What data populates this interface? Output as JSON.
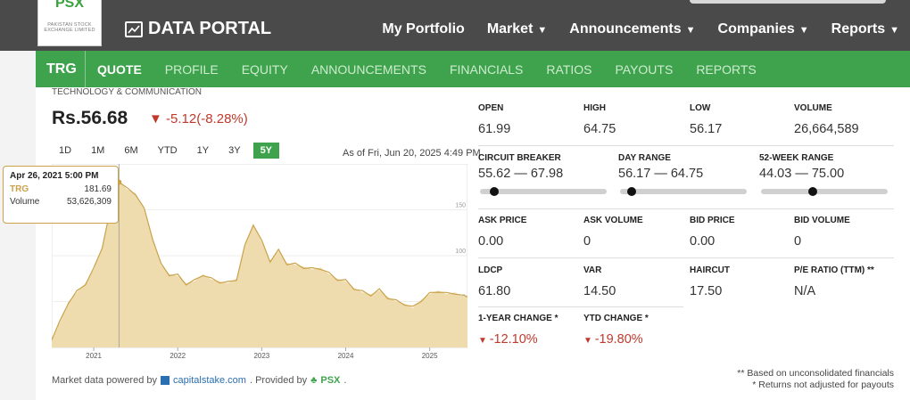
{
  "header": {
    "logo_text": "PSX",
    "logo_sub": "PAKISTAN STOCK EXCHANGE LIMITED",
    "portal_title": "DATA PORTAL",
    "nav": [
      {
        "label": "My Portfolio",
        "caret": false
      },
      {
        "label": "Market",
        "caret": true
      },
      {
        "label": "Announcements",
        "caret": true
      },
      {
        "label": "Companies",
        "caret": true
      },
      {
        "label": "Reports",
        "caret": true
      }
    ]
  },
  "subnav": {
    "symbol": "TRG",
    "tabs": [
      "QUOTE",
      "PROFILE",
      "EQUITY",
      "ANNOUNCEMENTS",
      "FINANCIALS",
      "RATIOS",
      "PAYOUTS",
      "REPORTS"
    ],
    "active_tab": "QUOTE"
  },
  "quote": {
    "sector": "TECHNOLOGY & COMMUNICATION",
    "price": "Rs.56.68",
    "change": "-5.12(-8.28%)",
    "ranges": [
      "1D",
      "1M",
      "6M",
      "YTD",
      "1Y",
      "3Y",
      "5Y"
    ],
    "selected_range": "5Y",
    "as_of": "As of Fri, Jun 20, 2025 4:49 PM"
  },
  "tooltip": {
    "date": "Apr 26, 2021 5:00 PM",
    "symbol_label": "TRG",
    "symbol_value": "181.69",
    "volume_label": "Volume",
    "volume_value": "53,626,309"
  },
  "chart_data": {
    "type": "area",
    "x_ticks": [
      "2021",
      "2022",
      "2023",
      "2024",
      "2025"
    ],
    "y_ticks": [
      50,
      100,
      150
    ],
    "ylim": [
      0,
      200
    ],
    "series_color": "#c9a24a",
    "fill_color": "#efdcae",
    "points": [
      [
        2020.5,
        10
      ],
      [
        2020.6,
        28
      ],
      [
        2020.7,
        50
      ],
      [
        2020.8,
        60
      ],
      [
        2020.9,
        70
      ],
      [
        2021.0,
        85
      ],
      [
        2021.1,
        110
      ],
      [
        2021.2,
        150
      ],
      [
        2021.3,
        182
      ],
      [
        2021.4,
        172
      ],
      [
        2021.5,
        168
      ],
      [
        2021.6,
        150
      ],
      [
        2021.7,
        120
      ],
      [
        2021.8,
        90
      ],
      [
        2021.9,
        80
      ],
      [
        2022.0,
        78
      ],
      [
        2022.1,
        70
      ],
      [
        2022.2,
        72
      ],
      [
        2022.3,
        80
      ],
      [
        2022.4,
        74
      ],
      [
        2022.5,
        72
      ],
      [
        2022.6,
        70
      ],
      [
        2022.7,
        75
      ],
      [
        2022.8,
        110
      ],
      [
        2022.9,
        135
      ],
      [
        2023.0,
        115
      ],
      [
        2023.1,
        95
      ],
      [
        2023.2,
        105
      ],
      [
        2023.3,
        92
      ],
      [
        2023.4,
        90
      ],
      [
        2023.5,
        88
      ],
      [
        2023.6,
        85
      ],
      [
        2023.7,
        87
      ],
      [
        2023.8,
        80
      ],
      [
        2023.9,
        75
      ],
      [
        2024.0,
        72
      ],
      [
        2024.1,
        65
      ],
      [
        2024.2,
        60
      ],
      [
        2024.3,
        58
      ],
      [
        2024.4,
        62
      ],
      [
        2024.5,
        55
      ],
      [
        2024.6,
        50
      ],
      [
        2024.7,
        48
      ],
      [
        2024.8,
        43
      ],
      [
        2024.9,
        52
      ],
      [
        2025.0,
        58
      ],
      [
        2025.1,
        62
      ],
      [
        2025.2,
        58
      ],
      [
        2025.3,
        60
      ],
      [
        2025.4,
        55
      ],
      [
        2025.45,
        57
      ]
    ],
    "highlight_x": 2021.3
  },
  "stats": {
    "open_label": "OPEN",
    "open": "61.99",
    "high_label": "HIGH",
    "high": "64.75",
    "low_label": "LOW",
    "low": "56.17",
    "volume_label": "VOLUME",
    "volume": "26,664,589",
    "cb_label": "CIRCUIT BREAKER",
    "cb": "55.62 — 67.98",
    "cb_pos": 0.08,
    "dr_label": "DAY RANGE",
    "dr": "56.17 — 64.75",
    "dr_pos": 0.06,
    "wk_label": "52-WEEK RANGE",
    "wk": "44.03 — 75.00",
    "wk_pos": 0.4,
    "ask_price_label": "ASK PRICE",
    "ask_price": "0.00",
    "ask_vol_label": "ASK VOLUME",
    "ask_vol": "0",
    "bid_price_label": "BID PRICE",
    "bid_price": "0.00",
    "bid_vol_label": "BID VOLUME",
    "bid_vol": "0",
    "ldcp_label": "LDCP",
    "ldcp": "61.80",
    "var_label": "VAR",
    "var": "14.50",
    "haircut_label": "HAIRCUT",
    "haircut": "17.50",
    "pe_label": "P/E RATIO (TTM) **",
    "pe": "N/A",
    "yr_label": "1-YEAR CHANGE *",
    "yr": "-12.10%",
    "ytd_label": "YTD CHANGE *",
    "ytd": "-19.80%"
  },
  "footer": {
    "powered": "Market data powered by",
    "capitalstake": "capitalstake.com",
    "provided": ". Provided by",
    "psx": "PSX",
    "period": ".",
    "note1": "** Based on unconsolidated financials",
    "note2": "* Returns not adjusted for payouts"
  }
}
